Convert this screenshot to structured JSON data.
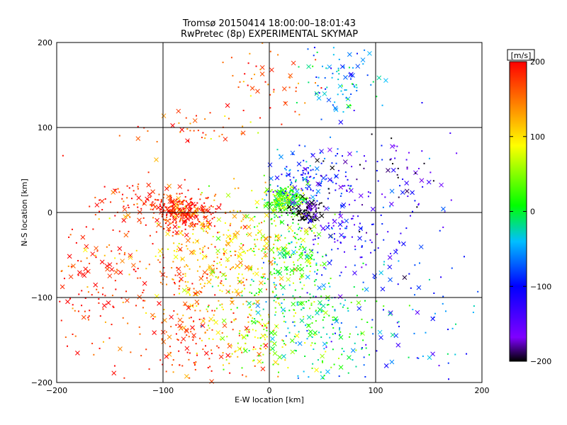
{
  "chart_data": {
    "type": "scatter",
    "title": "Tromsø 20150414 18:00:00–18:01:43",
    "subtitle": "RwPretec (8p) EXPERIMENTAL SKYMAP",
    "xlabel": "E-W location [km]",
    "ylabel": "N-S location [km]",
    "xlim": [
      -200,
      200
    ],
    "ylim": [
      -200,
      200
    ],
    "x_ticks": [
      "−200",
      "−100",
      "0",
      "100",
      "200"
    ],
    "y_ticks": [
      "−200",
      "−100",
      "0",
      "100",
      "200"
    ],
    "grid": true,
    "grid_values": [
      -100,
      0,
      100
    ],
    "colorbar": {
      "label": "[m/s]",
      "range": [
        -200,
        200
      ],
      "ticks": [
        "200",
        "100",
        "0",
        "−100",
        "−200"
      ],
      "colormap": [
        "#000000",
        "#7f00ff",
        "#0000ff",
        "#00bfff",
        "#00ff00",
        "#ffff00",
        "#ff8000",
        "#ff0000"
      ]
    },
    "marker_types": [
      "cross",
      "dot"
    ],
    "clusters": [
      {
        "cx": -80,
        "cy": 2,
        "sx": 14,
        "sy": 10,
        "v": 190,
        "n": 260
      },
      {
        "cx": -120,
        "cy": 10,
        "sx": 22,
        "sy": 14,
        "v": 180,
        "n": 80
      },
      {
        "cx": -40,
        "cy": -60,
        "sx": 28,
        "sy": 40,
        "v": 110,
        "n": 280
      },
      {
        "cx": -90,
        "cy": -60,
        "sx": 40,
        "sy": 45,
        "v": 160,
        "n": 200
      },
      {
        "cx": -70,
        "cy": -160,
        "sx": 30,
        "sy": 25,
        "v": 170,
        "n": 120
      },
      {
        "cx": -10,
        "cy": -150,
        "sx": 25,
        "sy": 20,
        "v": 80,
        "n": 100
      },
      {
        "cx": 15,
        "cy": 15,
        "sx": 10,
        "sy": 8,
        "v": 20,
        "n": 240
      },
      {
        "cx": 20,
        "cy": -40,
        "sx": 18,
        "sy": 30,
        "v": 30,
        "n": 200
      },
      {
        "cx": 30,
        "cy": -110,
        "sx": 30,
        "sy": 25,
        "v": 0,
        "n": 180
      },
      {
        "cx": 40,
        "cy": 40,
        "sx": 18,
        "sy": 15,
        "v": -90,
        "n": 120
      },
      {
        "cx": 35,
        "cy": 0,
        "sx": 8,
        "sy": 8,
        "v": -200,
        "n": 100
      },
      {
        "cx": 70,
        "cy": -30,
        "sx": 20,
        "sy": 25,
        "v": -120,
        "n": 80
      },
      {
        "cx": 65,
        "cy": 155,
        "sx": 18,
        "sy": 25,
        "v": -50,
        "n": 90
      },
      {
        "cx": 0,
        "cy": 155,
        "sx": 25,
        "sy": 20,
        "v": 180,
        "n": 50
      },
      {
        "cx": -60,
        "cy": 100,
        "sx": 30,
        "sy": 10,
        "v": 160,
        "n": 40
      },
      {
        "cx": 110,
        "cy": -60,
        "sx": 40,
        "sy": 80,
        "v": -100,
        "n": 120
      },
      {
        "cx": 110,
        "cy": 50,
        "sx": 30,
        "sy": 20,
        "v": -170,
        "n": 60
      },
      {
        "cx": -170,
        "cy": -90,
        "sx": 18,
        "sy": 50,
        "v": 190,
        "n": 90
      },
      {
        "cx": 60,
        "cy": -160,
        "sx": 25,
        "sy": 25,
        "v": -20,
        "n": 70
      },
      {
        "cx": 150,
        "cy": -120,
        "sx": 25,
        "sy": 40,
        "v": -60,
        "n": 30
      }
    ]
  }
}
